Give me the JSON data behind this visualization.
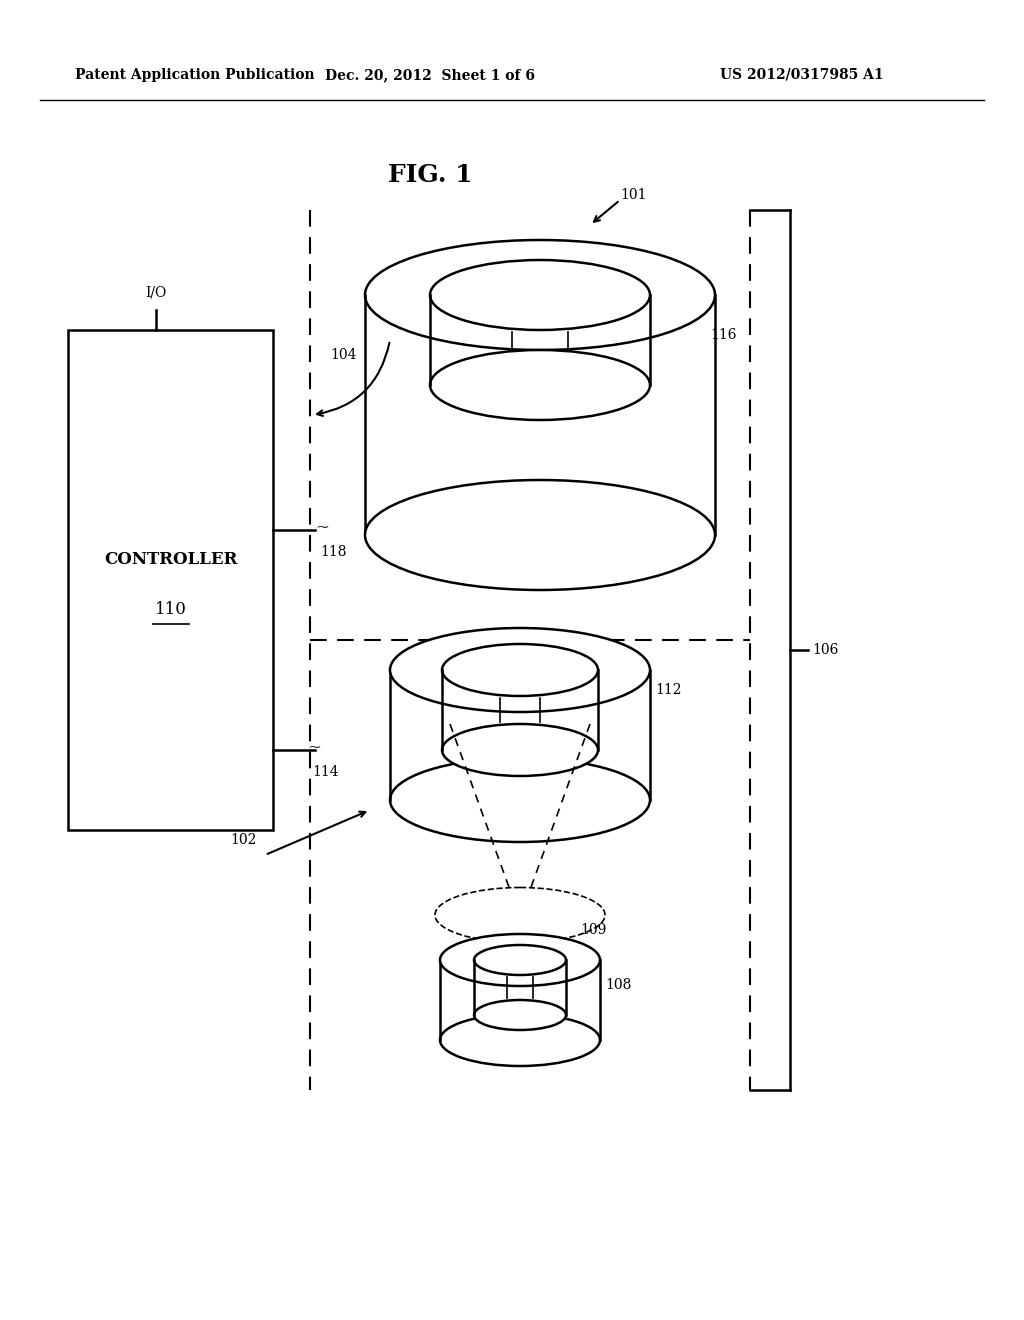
{
  "bg_color": "#ffffff",
  "line_color": "#000000",
  "header_left": "Patent Application Publication",
  "header_mid": "Dec. 20, 2012  Sheet 1 of 6",
  "header_right": "US 2012/0317985 A1",
  "fig_label": "FIG. 1",
  "controller_label": "CONTROLLER",
  "controller_num": "110",
  "io_label": "I/O"
}
